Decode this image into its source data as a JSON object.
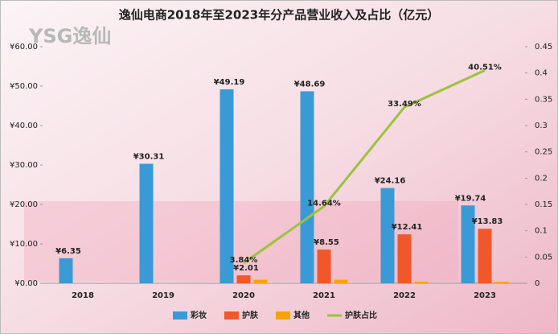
{
  "chart_data": {
    "type": "bar-line",
    "title": "逸仙电商2018年至2023年分产品营业收入及占比（亿元）",
    "logo": "YSG逸仙",
    "categories": [
      "2018",
      "2019",
      "2020",
      "2021",
      "2022",
      "2023"
    ],
    "series": [
      {
        "name": "彩妆",
        "type": "bar",
        "color": "#3a9ad6",
        "values": [
          6.35,
          30.31,
          49.19,
          48.69,
          24.16,
          19.74
        ],
        "value_labels": [
          "¥6.35",
          "¥30.31",
          "¥49.19",
          "¥48.69",
          "¥24.16",
          "¥19.74"
        ]
      },
      {
        "name": "护肤",
        "type": "bar",
        "color": "#f0572a",
        "values": [
          null,
          null,
          2.01,
          8.55,
          12.41,
          13.83
        ],
        "value_labels": [
          null,
          null,
          "¥2.01",
          "¥8.55",
          "¥12.41",
          "¥13.83"
        ]
      },
      {
        "name": "其他",
        "type": "bar",
        "color": "#f5a500",
        "values": [
          null,
          null,
          0.9,
          0.9,
          0.4,
          0.4
        ]
      },
      {
        "name": "护肤占比",
        "type": "line",
        "axis": "y2",
        "color": "#9cc33b",
        "values": [
          null,
          null,
          0.0384,
          0.1464,
          0.3349,
          0.4051
        ],
        "value_labels": [
          null,
          null,
          "3.84%",
          "14.64%",
          "33.49%",
          "40.51%"
        ]
      }
    ],
    "ylim": [
      0,
      60
    ],
    "yticks": [
      {
        "value": 0,
        "label": "¥0.00"
      },
      {
        "value": 10,
        "label": "¥10.00"
      },
      {
        "value": 20,
        "label": "¥20.00"
      },
      {
        "value": 30,
        "label": "¥30.00"
      },
      {
        "value": 40,
        "label": "¥40.00"
      },
      {
        "value": 50,
        "label": "¥50.00"
      },
      {
        "value": 60,
        "label": "¥60.00"
      }
    ],
    "y2lim": [
      0,
      0.45
    ],
    "y2ticks": [
      0,
      0.05,
      0.1,
      0.15,
      0.2,
      0.25,
      0.3,
      0.35,
      0.4,
      0.45
    ],
    "legend": "bottom"
  }
}
